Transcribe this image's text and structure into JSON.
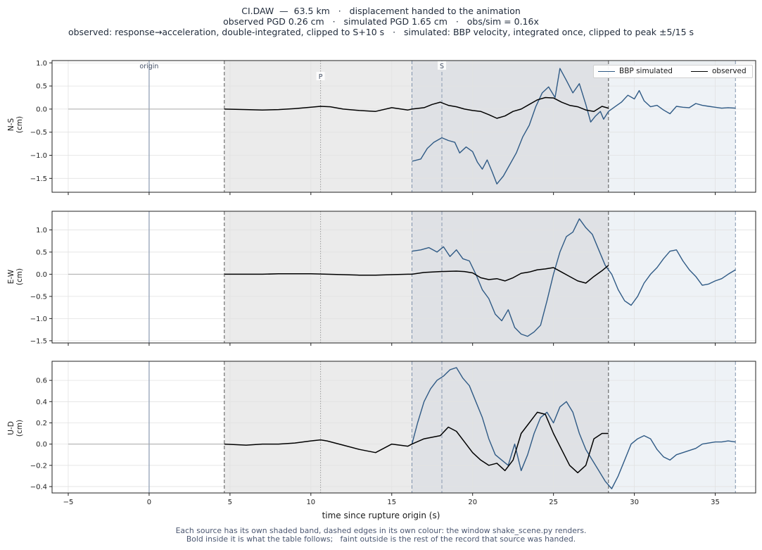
{
  "header": {
    "line1": "CI.DAW  —  63.5 km   ·   displacement handed to the animation",
    "line2": "observed PGD 0.26 cm   ·   simulated PGD 1.65 cm   ·   obs/sim = 0.16x",
    "line3": "observed: response→acceleration, double-integrated, clipped to S+10 s   ·   simulated: BBP velocity, integrated once, clipped to peak ±5/15 s"
  },
  "footer": {
    "line1": "Each source has its own shaded band, dashed edges in its own colour: the window shake_scene.py renders.",
    "line2": "Bold inside it is what the table follows;   faint outside is the rest of the record that source was handed."
  },
  "legend": {
    "simulated": "BBP simulated",
    "observed": "observed"
  },
  "markers": {
    "origin": "origin",
    "p": "P",
    "s": "S"
  },
  "colors": {
    "simulated": "#2f5a85",
    "observed": "#000000",
    "obs_band": "#ebebeb",
    "sim_band": "#eef2f6",
    "overlap_band": "#dfe1e5"
  },
  "chart_data": [
    {
      "type": "line",
      "panel": "N-S",
      "ylabel": "N-S\n(cm)",
      "xlabel": "time since rupture origin (s)",
      "xlim": [
        -6,
        37.5
      ],
      "ylim": [
        -1.8,
        1.05
      ],
      "xticks": [
        -5,
        0,
        5,
        10,
        15,
        20,
        25,
        30,
        35
      ],
      "yticks": [
        1.0,
        0.5,
        0.0,
        -0.5,
        -1.0,
        -1.5
      ],
      "grid": true,
      "legend_position": "top-right",
      "marks": {
        "origin": 0,
        "p": 10.6,
        "s": 18.1
      },
      "windows": {
        "observed": [
          4.65,
          28.4
        ],
        "simulated": [
          16.25,
          36.25
        ]
      },
      "series": [
        {
          "name": "BBP simulated",
          "x": [
            16.25,
            16.8,
            17.2,
            17.6,
            18.1,
            18.5,
            18.9,
            19.2,
            19.6,
            20.0,
            20.3,
            20.6,
            20.9,
            21.2,
            21.5,
            21.9,
            22.3,
            22.7,
            23.1,
            23.5,
            23.9,
            24.3,
            24.7,
            25.1,
            25.4,
            25.8,
            26.2,
            26.6,
            27.0,
            27.3,
            27.6,
            27.9,
            28.1,
            28.4,
            28.8,
            29.2,
            29.6,
            30.0,
            30.3,
            30.6,
            31.0,
            31.4,
            31.8,
            32.2,
            32.6,
            33.0,
            33.4,
            33.8,
            34.2,
            34.6,
            35.0,
            35.4,
            35.8,
            36.25
          ],
          "y": [
            -1.13,
            -1.08,
            -0.85,
            -0.72,
            -0.62,
            -0.68,
            -0.72,
            -0.95,
            -0.82,
            -0.92,
            -1.15,
            -1.3,
            -1.1,
            -1.35,
            -1.62,
            -1.45,
            -1.2,
            -0.95,
            -0.6,
            -0.35,
            0.05,
            0.35,
            0.48,
            0.25,
            0.88,
            0.62,
            0.35,
            0.55,
            0.1,
            -0.28,
            -0.15,
            -0.05,
            -0.22,
            -0.05,
            0.05,
            0.15,
            0.3,
            0.22,
            0.4,
            0.18,
            0.05,
            0.08,
            -0.02,
            -0.1,
            0.06,
            0.04,
            0.03,
            0.12,
            0.08,
            0.06,
            0.04,
            0.02,
            0.03,
            0.02
          ]
        },
        {
          "name": "observed",
          "x": [
            4.65,
            6,
            7,
            8,
            9,
            10,
            10.6,
            11.2,
            12,
            13,
            14,
            15,
            16,
            16.25,
            17,
            17.5,
            18,
            18.5,
            19,
            19.5,
            20,
            20.5,
            21,
            21.5,
            22,
            22.5,
            23,
            23.5,
            24,
            24.5,
            25,
            25.5,
            26,
            26.5,
            27,
            27.5,
            28,
            28.4
          ],
          "y": [
            0.0,
            -0.01,
            -0.02,
            -0.01,
            0.01,
            0.04,
            0.06,
            0.05,
            0.0,
            -0.03,
            -0.05,
            0.03,
            -0.02,
            0.0,
            0.03,
            0.1,
            0.15,
            0.08,
            0.05,
            0.0,
            -0.03,
            -0.05,
            -0.12,
            -0.2,
            -0.15,
            -0.05,
            0.0,
            0.1,
            0.2,
            0.25,
            0.24,
            0.15,
            0.08,
            0.05,
            -0.02,
            -0.05,
            0.06,
            0.02
          ]
        }
      ]
    },
    {
      "type": "line",
      "panel": "E-W",
      "ylabel": "E-W\n(cm)",
      "xlabel": "time since rupture origin (s)",
      "xlim": [
        -6,
        37.5
      ],
      "ylim": [
        -1.55,
        1.42
      ],
      "xticks": [
        -5,
        0,
        5,
        10,
        15,
        20,
        25,
        30,
        35
      ],
      "yticks": [
        1.0,
        0.5,
        0.0,
        -0.5,
        -1.0,
        -1.5
      ],
      "grid": true,
      "marks": {
        "origin": 0,
        "p": 10.6,
        "s": 18.1
      },
      "windows": {
        "observed": [
          4.65,
          28.4
        ],
        "simulated": [
          16.25,
          36.25
        ]
      },
      "series": [
        {
          "name": "BBP simulated",
          "x": [
            16.25,
            16.8,
            17.3,
            17.8,
            18.2,
            18.6,
            19.0,
            19.4,
            19.8,
            20.2,
            20.6,
            21.0,
            21.4,
            21.8,
            22.2,
            22.6,
            23.0,
            23.4,
            23.8,
            24.2,
            24.6,
            25.0,
            25.4,
            25.8,
            26.2,
            26.6,
            27.0,
            27.4,
            27.8,
            28.2,
            28.6,
            29.0,
            29.4,
            29.8,
            30.2,
            30.6,
            31.0,
            31.4,
            31.8,
            32.2,
            32.6,
            33.0,
            33.4,
            33.8,
            34.2,
            34.6,
            35.0,
            35.4,
            35.8,
            36.25
          ],
          "y": [
            0.52,
            0.55,
            0.6,
            0.5,
            0.62,
            0.4,
            0.55,
            0.35,
            0.3,
            0.0,
            -0.35,
            -0.55,
            -0.9,
            -1.05,
            -0.8,
            -1.2,
            -1.35,
            -1.4,
            -1.3,
            -1.15,
            -0.6,
            0.0,
            0.5,
            0.85,
            0.95,
            1.25,
            1.05,
            0.9,
            0.55,
            0.2,
            0.0,
            -0.35,
            -0.6,
            -0.7,
            -0.5,
            -0.2,
            0.0,
            0.15,
            0.35,
            0.52,
            0.55,
            0.3,
            0.1,
            -0.05,
            -0.25,
            -0.22,
            -0.15,
            -0.1,
            0.0,
            0.1
          ]
        },
        {
          "name": "observed",
          "x": [
            4.65,
            6,
            7,
            8,
            9,
            10,
            11,
            12,
            13,
            14,
            15,
            16,
            16.25,
            17,
            18,
            19,
            19.5,
            20,
            20.5,
            21,
            21.5,
            22,
            22.5,
            23,
            23.5,
            24,
            24.5,
            25,
            25.5,
            26,
            26.5,
            27,
            27.5,
            28,
            28.4
          ],
          "y": [
            0.0,
            0.0,
            0.0,
            0.01,
            0.01,
            0.01,
            0.0,
            -0.01,
            -0.02,
            -0.02,
            -0.01,
            0.0,
            0.0,
            0.04,
            0.06,
            0.07,
            0.06,
            0.03,
            -0.08,
            -0.12,
            -0.1,
            -0.15,
            -0.08,
            0.02,
            0.05,
            0.1,
            0.12,
            0.15,
            0.05,
            -0.05,
            -0.15,
            -0.2,
            -0.05,
            0.08,
            0.2
          ]
        }
      ]
    },
    {
      "type": "line",
      "panel": "U-D",
      "ylabel": "U-D\n(cm)",
      "xlabel": "time since rupture origin (s)",
      "xlim": [
        -6,
        37.5
      ],
      "ylim": [
        -0.46,
        0.78
      ],
      "xticks": [
        -5,
        0,
        5,
        10,
        15,
        20,
        25,
        30,
        35
      ],
      "yticks": [
        0.6,
        0.4,
        0.2,
        0.0,
        -0.2,
        -0.4
      ],
      "grid": true,
      "marks": {
        "origin": 0,
        "p": 10.6,
        "s": 18.1
      },
      "windows": {
        "observed": [
          4.65,
          28.4
        ],
        "simulated": [
          16.25,
          36.25
        ]
      },
      "series": [
        {
          "name": "BBP simulated",
          "x": [
            16.25,
            16.6,
            17.0,
            17.4,
            17.8,
            18.2,
            18.6,
            19.0,
            19.4,
            19.8,
            20.2,
            20.6,
            21.0,
            21.4,
            21.8,
            22.2,
            22.6,
            23.0,
            23.4,
            23.8,
            24.2,
            24.6,
            25.0,
            25.4,
            25.8,
            26.2,
            26.6,
            27.0,
            27.4,
            27.8,
            28.2,
            28.6,
            29.0,
            29.4,
            29.8,
            30.2,
            30.6,
            31.0,
            31.4,
            31.8,
            32.2,
            32.6,
            33.0,
            33.4,
            33.8,
            34.2,
            34.6,
            35.0,
            35.4,
            35.8,
            36.25
          ],
          "y": [
            0.0,
            0.2,
            0.4,
            0.52,
            0.6,
            0.64,
            0.7,
            0.72,
            0.62,
            0.55,
            0.4,
            0.25,
            0.05,
            -0.1,
            -0.15,
            -0.2,
            0.0,
            -0.25,
            -0.1,
            0.1,
            0.25,
            0.3,
            0.2,
            0.35,
            0.4,
            0.3,
            0.1,
            -0.05,
            -0.15,
            -0.25,
            -0.35,
            -0.42,
            -0.3,
            -0.15,
            0.0,
            0.05,
            0.08,
            0.05,
            -0.05,
            -0.12,
            -0.15,
            -0.1,
            -0.08,
            -0.06,
            -0.04,
            0.0,
            0.01,
            0.02,
            0.02,
            0.03,
            0.02
          ]
        },
        {
          "name": "observed",
          "x": [
            4.65,
            6,
            7,
            8,
            9,
            10,
            10.6,
            11,
            12,
            13,
            14,
            15,
            16,
            16.25,
            17,
            18,
            18.5,
            19,
            19.5,
            20,
            20.5,
            21,
            21.5,
            22,
            22.5,
            23,
            23.5,
            24,
            24.5,
            25,
            25.5,
            26,
            26.5,
            27,
            27.5,
            28,
            28.4
          ],
          "y": [
            0.0,
            -0.01,
            0.0,
            0.0,
            0.01,
            0.03,
            0.04,
            0.03,
            -0.01,
            -0.05,
            -0.08,
            0.0,
            -0.02,
            0.0,
            0.05,
            0.08,
            0.16,
            0.12,
            0.02,
            -0.08,
            -0.15,
            -0.2,
            -0.18,
            -0.25,
            -0.15,
            0.1,
            0.2,
            0.3,
            0.28,
            0.1,
            -0.05,
            -0.2,
            -0.27,
            -0.2,
            0.05,
            0.1,
            0.1
          ]
        }
      ]
    }
  ]
}
